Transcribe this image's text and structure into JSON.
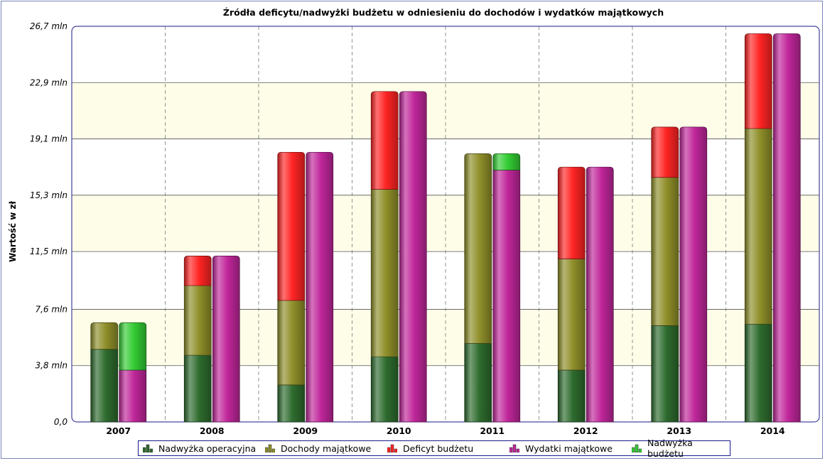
{
  "chart_data": {
    "type": "bar",
    "stacked": true,
    "title": "Źródła deficytu/nadwyżki budżetu w odniesieniu do dochodów i wydatków majątkowych",
    "xlabel": "",
    "ylabel": "Wartość w zł",
    "ylim": [
      0,
      26.7
    ],
    "yticks": [
      "0,0",
      "3,8 mln",
      "7,6 mln",
      "11,5 mln",
      "15,3 mln",
      "19,1 mln",
      "22,9 mln",
      "26,7 mln"
    ],
    "ytick_values": [
      0,
      3.8,
      7.6,
      11.5,
      15.3,
      19.1,
      22.9,
      26.7
    ],
    "categories": [
      "2007",
      "2008",
      "2009",
      "2010",
      "2011",
      "2012",
      "2013",
      "2014"
    ],
    "stacks": [
      {
        "id": "left",
        "series": [
          "Nadwyżka operacyjna",
          "Dochody majątkowe",
          "Deficyt budżetu"
        ]
      },
      {
        "id": "right",
        "series": [
          "Wydatki majątkowe",
          "Nadwyżka budżetu"
        ]
      }
    ],
    "series": [
      {
        "name": "Nadwyżka operacyjna",
        "stack": "left",
        "color": "#2e6b2e",
        "values": [
          4.9,
          4.5,
          2.5,
          4.4,
          5.3,
          3.5,
          6.5,
          6.6
        ]
      },
      {
        "name": "Dochody majątkowe",
        "stack": "left",
        "color": "#8f8f2a",
        "values": [
          1.8,
          4.7,
          5.7,
          11.3,
          12.8,
          7.5,
          10.0,
          13.2
        ]
      },
      {
        "name": "Deficyt budżetu",
        "stack": "left",
        "color": "#ff2424",
        "values": [
          0,
          2.0,
          10.0,
          6.6,
          0,
          6.2,
          3.4,
          6.4
        ]
      },
      {
        "name": "Wydatki majątkowe",
        "stack": "right",
        "color": "#c0269a",
        "values": [
          3.5,
          11.2,
          18.2,
          22.3,
          17.0,
          17.2,
          19.9,
          26.2
        ]
      },
      {
        "name": "Nadwyżka budżetu",
        "stack": "right",
        "color": "#33cc33",
        "values": [
          3.2,
          0,
          0,
          0,
          1.1,
          0,
          0,
          0
        ]
      }
    ],
    "grid": true,
    "legend_position": "bottom"
  },
  "legend": {
    "items": [
      {
        "label": "Nadwyżka operacyjna",
        "color": "#2e6b2e"
      },
      {
        "label": "Dochody majątkowe",
        "color": "#8f8f2a"
      },
      {
        "label": "Deficyt budżetu",
        "color": "#ff2424"
      },
      {
        "label": "Wydatki majątkowe",
        "color": "#c0269a"
      },
      {
        "label": "Nadwyżka budżetu",
        "color": "#33cc33"
      }
    ]
  }
}
